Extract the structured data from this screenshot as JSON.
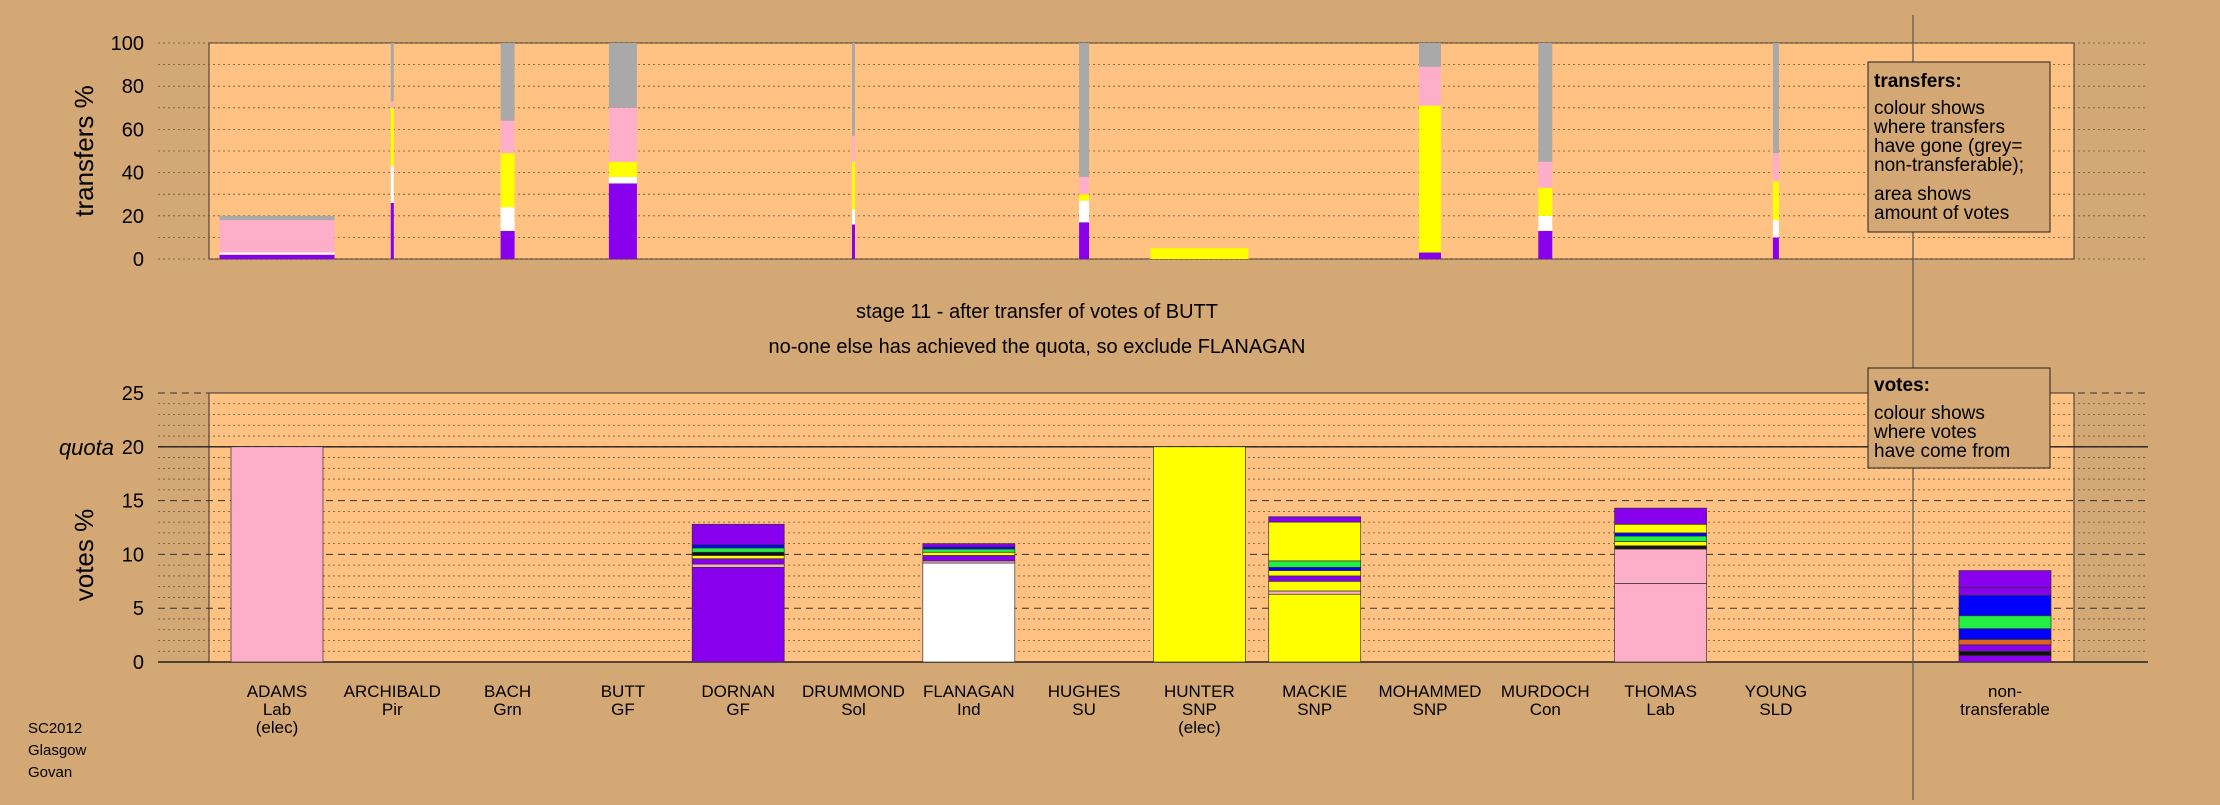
{
  "footer": {
    "lines": [
      "SC2012",
      "Glasgow",
      "Govan"
    ]
  },
  "stage": {
    "heading": "stage 11 - after transfer of votes of BUTT",
    "subheading": "no-one else has achieved the quota, so exclude FLANAGAN"
  },
  "legends": {
    "transfers": {
      "title": "transfers:",
      "line1": "colour shows",
      "line2": "where transfers",
      "line3": "have gone (grey=",
      "line4": "non-transferable);",
      "line5": "area shows",
      "line6": "amount of votes"
    },
    "votes": {
      "title": "votes:",
      "line1": "colour shows",
      "line2": "where votes",
      "line3": "have come from"
    }
  },
  "colors": {
    "background": "#d3a874",
    "plot": "#ffc283",
    "Lab": "#ffaec9",
    "SNP": "#ffff00",
    "GF": "#8800ee",
    "Ind": "#ffffff",
    "Grn": "#22ee44",
    "Con": "#0000ff",
    "SU": "#e06020",
    "Pir": "#111111",
    "nontransferable": "#a9a9a9"
  },
  "chart_data": [
    {
      "type": "bar",
      "name": "transfers",
      "ylabel": "transfers %",
      "ylim": [
        0,
        100
      ],
      "yticks": [
        0,
        20,
        40,
        60,
        80,
        100
      ],
      "segments_order": [
        "GF",
        "Ind",
        "SNP",
        "Lab",
        "nontransferable"
      ],
      "bars": [
        {
          "candidate": "ADAMS",
          "segments": [
            2,
            1,
            0,
            15,
            2
          ]
        },
        {
          "candidate": "ARCHIBALD",
          "segments": [
            26,
            17,
            27,
            3,
            27
          ]
        },
        {
          "candidate": "BACH",
          "segments": [
            13,
            11,
            25,
            15,
            36
          ]
        },
        {
          "candidate": "BUTT",
          "segments": [
            35,
            3,
            7,
            25,
            30
          ]
        },
        {
          "candidate": "DRUMMOND",
          "segments": [
            16,
            7,
            22,
            12,
            43
          ]
        },
        {
          "candidate": "HUGHES",
          "segments": [
            17,
            10,
            3,
            8,
            62
          ]
        },
        {
          "candidate": "HUNTER",
          "segments": [
            0,
            0,
            5,
            0,
            0
          ]
        },
        {
          "candidate": "MOHAMMED",
          "segments": [
            3,
            0,
            68,
            18,
            11
          ]
        },
        {
          "candidate": "MURDOCH",
          "segments": [
            13,
            7,
            13,
            12,
            55
          ]
        },
        {
          "candidate": "YOUNG",
          "segments": [
            10,
            8,
            18,
            13,
            51
          ]
        }
      ]
    },
    {
      "type": "bar",
      "name": "votes",
      "ylabel": "votes %",
      "ylim": [
        0,
        25
      ],
      "yticks": [
        0,
        5,
        10,
        15,
        20,
        25
      ],
      "quota": 20,
      "quota_label": "quota",
      "bars": [
        {
          "candidate": "ADAMS",
          "party": "Lab",
          "note": "(elec)",
          "segments": [
            {
              "party": "Lab",
              "value": 20
            }
          ]
        },
        {
          "candidate": "ARCHIBALD",
          "party": "Pir",
          "segments": []
        },
        {
          "candidate": "BACH",
          "party": "Grn",
          "segments": []
        },
        {
          "candidate": "BUTT",
          "party": "GF",
          "segments": []
        },
        {
          "candidate": "DORNAN",
          "party": "GF",
          "segments": [
            {
              "party": "GF",
              "value": 8.8
            },
            {
              "party": "Lab",
              "value": 0.3
            },
            {
              "party": "GF",
              "value": 0.5
            },
            {
              "party": "SNP",
              "value": 0.3
            },
            {
              "party": "Pir",
              "value": 0.3
            },
            {
              "party": "Grn",
              "value": 0.4
            },
            {
              "party": "Con",
              "value": 0.3
            },
            {
              "party": "GF",
              "value": 1.9
            }
          ]
        },
        {
          "candidate": "DRUMMOND",
          "party": "Sol",
          "segments": []
        },
        {
          "candidate": "FLANAGAN",
          "party": "Ind",
          "segments": [
            {
              "party": "Ind",
              "value": 9.2
            },
            {
              "party": "Lab",
              "value": 0.2
            },
            {
              "party": "GF",
              "value": 0.5
            },
            {
              "party": "SNP",
              "value": 0.3
            },
            {
              "party": "Grn",
              "value": 0.3
            },
            {
              "party": "Con",
              "value": 0.2
            },
            {
              "party": "GF",
              "value": 0.3
            }
          ]
        },
        {
          "candidate": "HUGHES",
          "party": "SU",
          "segments": []
        },
        {
          "candidate": "HUNTER",
          "party": "SNP",
          "note": "(elec)",
          "segments": [
            {
              "party": "SNP",
              "value": 20
            }
          ]
        },
        {
          "candidate": "MACKIE",
          "party": "SNP",
          "segments": [
            {
              "party": "SNP",
              "value": 6.3
            },
            {
              "party": "Lab",
              "value": 0.3
            },
            {
              "party": "SNP",
              "value": 0.9
            },
            {
              "party": "GF",
              "value": 0.5
            },
            {
              "party": "SNP",
              "value": 0.5
            },
            {
              "party": "Con",
              "value": 0.3
            },
            {
              "party": "Grn",
              "value": 0.6
            },
            {
              "party": "SNP",
              "value": 3.6
            },
            {
              "party": "GF",
              "value": 0.5
            }
          ]
        },
        {
          "candidate": "MOHAMMED",
          "party": "SNP",
          "segments": []
        },
        {
          "candidate": "MURDOCH",
          "party": "Con",
          "segments": []
        },
        {
          "candidate": "THOMAS",
          "party": "Lab",
          "segments": [
            {
              "party": "Lab",
              "value": 7.3
            },
            {
              "party": "Lab",
              "value": 3.2
            },
            {
              "party": "Pir",
              "value": 0.3
            },
            {
              "party": "SNP",
              "value": 0.4
            },
            {
              "party": "Grn",
              "value": 0.5
            },
            {
              "party": "Con",
              "value": 0.3
            },
            {
              "party": "SNP",
              "value": 0.8
            },
            {
              "party": "GF",
              "value": 1.5
            }
          ]
        },
        {
          "candidate": "YOUNG",
          "party": "SLD",
          "segments": []
        },
        {
          "candidate": "non-",
          "party": "transferable",
          "segments": [
            {
              "party": "GF",
              "value": 0.6
            },
            {
              "party": "Pir",
              "value": 0.4
            },
            {
              "party": "GF",
              "value": 0.6
            },
            {
              "party": "SU",
              "value": 0.5
            },
            {
              "party": "Con",
              "value": 1.0
            },
            {
              "party": "Grn",
              "value": 1.2
            },
            {
              "party": "Con",
              "value": 1.9
            },
            {
              "party": "GF",
              "value": 0.7
            },
            {
              "party": "GF",
              "value": 1.6
            }
          ]
        }
      ]
    }
  ]
}
